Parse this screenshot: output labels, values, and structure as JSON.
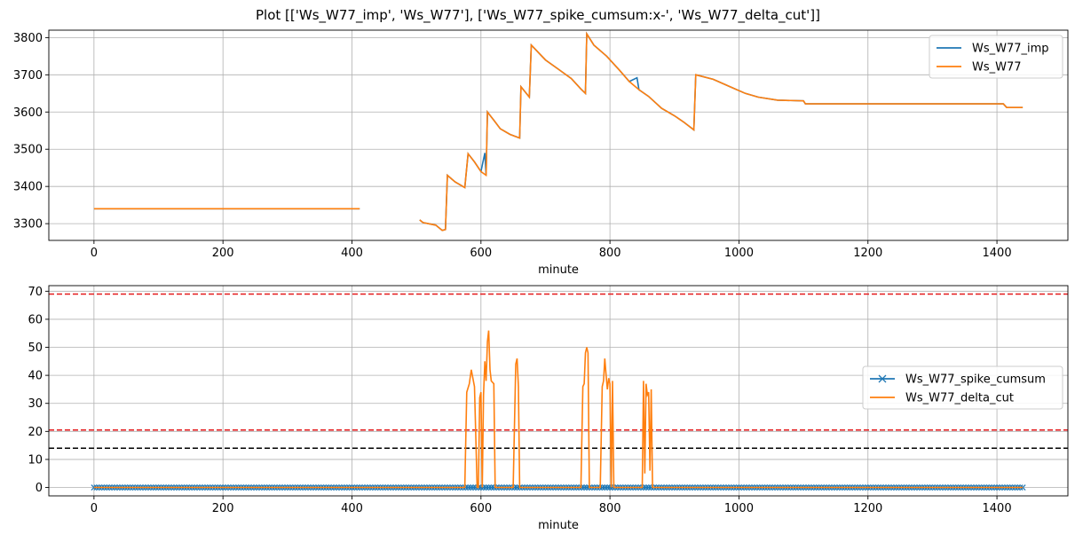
{
  "figure": {
    "title": "Plot [['Ws_W77_imp', 'Ws_W77'], ['Ws_W77_spike_cumsum:x-', 'Ws_W77_delta_cut']]"
  },
  "chart_data": [
    {
      "type": "line",
      "xlabel": "minute",
      "ylabel": "",
      "xlim": [
        -70,
        1510
      ],
      "ylim": [
        3255,
        3820
      ],
      "xticks": [
        0,
        200,
        400,
        600,
        800,
        1000,
        1200,
        1400
      ],
      "yticks": [
        3300,
        3400,
        3500,
        3600,
        3700,
        3800
      ],
      "grid": true,
      "legend_position": "top-right",
      "series": [
        {
          "name": "Ws_W77_imp",
          "color": "#1f77b4",
          "segments": [
            [
              [
                0,
                3340
              ],
              [
                412,
                3340
              ]
            ],
            [
              [
                505,
                3310
              ],
              [
                510,
                3303
              ],
              [
                530,
                3296
              ],
              [
                540,
                3282
              ],
              [
                545,
                3284
              ],
              [
                548,
                3430
              ],
              [
                560,
                3412
              ],
              [
                575,
                3397
              ],
              [
                580,
                3488
              ],
              [
                590,
                3466
              ],
              [
                600,
                3440
              ],
              [
                606,
                3490
              ],
              [
                608,
                3430
              ],
              [
                610,
                3600
              ],
              [
                620,
                3578
              ],
              [
                630,
                3555
              ],
              [
                645,
                3540
              ],
              [
                660,
                3530
              ],
              [
                662,
                3668
              ],
              [
                675,
                3640
              ],
              [
                678,
                3780
              ],
              [
                700,
                3740
              ],
              [
                720,
                3715
              ],
              [
                740,
                3690
              ],
              [
                755,
                3662
              ],
              [
                762,
                3650
              ],
              [
                764,
                3810
              ],
              [
                775,
                3780
              ],
              [
                795,
                3750
              ],
              [
                815,
                3712
              ],
              [
                830,
                3682
              ],
              [
                842,
                3692
              ],
              [
                845,
                3660
              ],
              [
                860,
                3642
              ],
              [
                880,
                3610
              ],
              [
                900,
                3590
              ],
              [
                915,
                3572
              ],
              [
                930,
                3552
              ],
              [
                933,
                3700
              ],
              [
                960,
                3688
              ],
              [
                990,
                3665
              ],
              [
                1010,
                3650
              ],
              [
                1030,
                3640
              ],
              [
                1060,
                3632
              ],
              [
                1100,
                3630
              ],
              [
                1103,
                3622
              ],
              [
                1300,
                3622
              ],
              [
                1410,
                3622
              ],
              [
                1415,
                3612
              ],
              [
                1440,
                3612
              ]
            ]
          ]
        },
        {
          "name": "Ws_W77",
          "color": "#ff7f0e",
          "segments": [
            [
              [
                0,
                3340
              ],
              [
                412,
                3340
              ]
            ],
            [
              [
                505,
                3310
              ],
              [
                510,
                3303
              ],
              [
                530,
                3296
              ],
              [
                540,
                3282
              ],
              [
                545,
                3284
              ],
              [
                548,
                3430
              ],
              [
                560,
                3412
              ],
              [
                575,
                3397
              ],
              [
                580,
                3488
              ],
              [
                590,
                3466
              ],
              [
                600,
                3440
              ],
              [
                608,
                3430
              ],
              [
                610,
                3600
              ],
              [
                620,
                3578
              ],
              [
                630,
                3555
              ],
              [
                645,
                3540
              ],
              [
                660,
                3530
              ],
              [
                662,
                3668
              ],
              [
                675,
                3640
              ],
              [
                678,
                3780
              ],
              [
                700,
                3740
              ],
              [
                720,
                3715
              ],
              [
                740,
                3690
              ],
              [
                755,
                3662
              ],
              [
                762,
                3650
              ],
              [
                764,
                3810
              ],
              [
                775,
                3780
              ],
              [
                795,
                3750
              ],
              [
                815,
                3712
              ],
              [
                830,
                3682
              ],
              [
                845,
                3660
              ],
              [
                860,
                3642
              ],
              [
                880,
                3610
              ],
              [
                900,
                3590
              ],
              [
                915,
                3572
              ],
              [
                930,
                3552
              ],
              [
                933,
                3700
              ],
              [
                960,
                3688
              ],
              [
                990,
                3665
              ],
              [
                1010,
                3650
              ],
              [
                1030,
                3640
              ],
              [
                1060,
                3632
              ],
              [
                1100,
                3630
              ],
              [
                1103,
                3622
              ],
              [
                1300,
                3622
              ],
              [
                1410,
                3622
              ],
              [
                1415,
                3612
              ],
              [
                1440,
                3612
              ]
            ]
          ]
        }
      ]
    },
    {
      "type": "line",
      "xlabel": "minute",
      "ylabel": "",
      "xlim": [
        -70,
        1510
      ],
      "ylim": [
        -3,
        72
      ],
      "xticks": [
        0,
        200,
        400,
        600,
        800,
        1000,
        1200,
        1400
      ],
      "yticks": [
        0,
        10,
        20,
        30,
        40,
        50,
        60,
        70
      ],
      "grid": true,
      "legend_position": "center-right",
      "hlines": [
        {
          "y": 69,
          "color": "#e41a1c",
          "style": "dashed"
        },
        {
          "y": 20.5,
          "color": "#e41a1c",
          "style": "dashed"
        },
        {
          "y": 14,
          "color": "#000000",
          "style": "dashed"
        }
      ],
      "series": [
        {
          "name": "Ws_W77_spike_cumsum",
          "color": "#1f77b4",
          "marker": "x",
          "values_const": 0,
          "x_range": [
            0,
            1440
          ],
          "segments": [
            [
              [
                0,
                0
              ],
              [
                1440,
                0
              ]
            ]
          ]
        },
        {
          "name": "Ws_W77_delta_cut",
          "color": "#ff7f0e",
          "segments": [
            [
              [
                0,
                0
              ],
              [
                575,
                0
              ],
              [
                578,
                34
              ],
              [
                582,
                37
              ],
              [
                585,
                42
              ],
              [
                590,
                36
              ],
              [
                594,
                0
              ],
              [
                596,
                0
              ],
              [
                598,
                32
              ],
              [
                600,
                34
              ],
              [
                602,
                0
              ],
              [
                604,
                33
              ],
              [
                606,
                45
              ],
              [
                608,
                38
              ],
              [
                610,
                52
              ],
              [
                612,
                56
              ],
              [
                614,
                42
              ],
              [
                616,
                38
              ],
              [
                620,
                37
              ],
              [
                622,
                0
              ],
              [
                650,
                0
              ],
              [
                654,
                44
              ],
              [
                656,
                46
              ],
              [
                658,
                36
              ],
              [
                660,
                0
              ],
              [
                755,
                0
              ],
              [
                758,
                36
              ],
              [
                760,
                37
              ],
              [
                762,
                48
              ],
              [
                764,
                50
              ],
              [
                766,
                48
              ],
              [
                768,
                0
              ],
              [
                785,
                0
              ],
              [
                788,
                36
              ],
              [
                790,
                38
              ],
              [
                792,
                46
              ],
              [
                794,
                40
              ],
              [
                796,
                35
              ],
              [
                798,
                39
              ],
              [
                800,
                37
              ],
              [
                802,
                0
              ],
              [
                804,
                38
              ],
              [
                806,
                0
              ],
              [
                850,
                0
              ],
              [
                852,
                38
              ],
              [
                854,
                5
              ],
              [
                856,
                37
              ],
              [
                858,
                33
              ],
              [
                860,
                34
              ],
              [
                862,
                6
              ],
              [
                864,
                35
              ],
              [
                866,
                0
              ],
              [
                1440,
                0
              ]
            ]
          ]
        }
      ]
    }
  ]
}
